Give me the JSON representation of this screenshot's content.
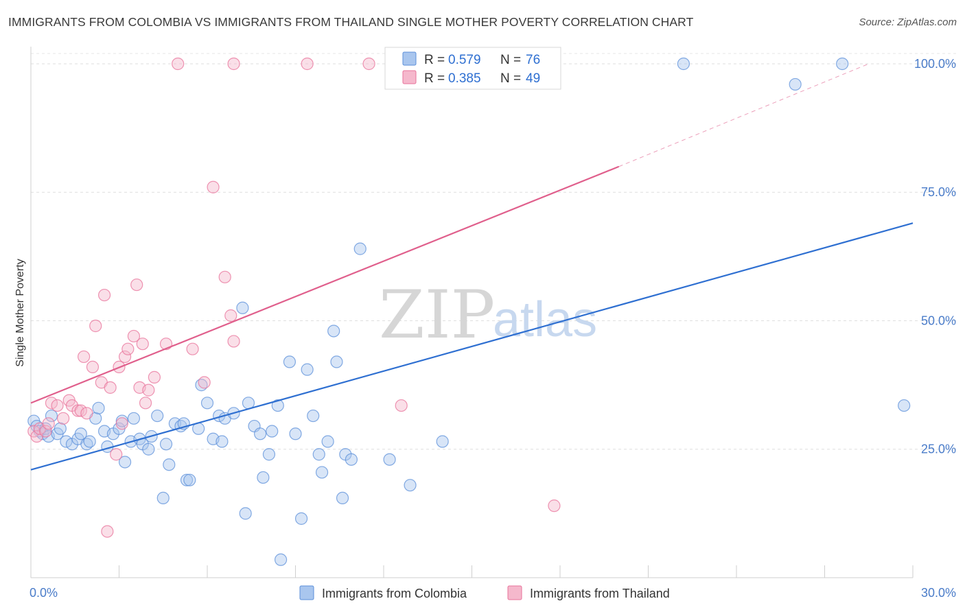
{
  "title": "IMMIGRANTS FROM COLOMBIA VS IMMIGRANTS FROM THAILAND SINGLE MOTHER POVERTY CORRELATION CHART",
  "source": "Source: ZipAtlas.com",
  "watermark": {
    "zip": "ZIP",
    "atlas": "atlas"
  },
  "colors": {
    "colombia": "#5b8fd9",
    "colombia_fill": "#a9c6ee",
    "thailand": "#e8729a",
    "thailand_fill": "#f5b8cc",
    "colombia_line": "#2e6fd1",
    "thailand_line": "#e05f8c"
  },
  "chart_data": {
    "type": "scatter",
    "title": "IMMIGRANTS FROM COLOMBIA VS IMMIGRANTS FROM THAILAND SINGLE MOTHER POVERTY CORRELATION CHART",
    "xlabel": "",
    "ylabel": "Single Mother Poverty",
    "xlim": [
      0,
      30
    ],
    "ylim": [
      0,
      102
    ],
    "x_tick_labels": [
      "0.0%",
      "30.0%"
    ],
    "y_ticks": [
      25,
      50,
      75,
      100
    ],
    "y_tick_labels": [
      "25.0%",
      "50.0%",
      "75.0%",
      "100.0%"
    ],
    "grid": true,
    "legend": [
      {
        "r_label": "R = ",
        "r": "0.579",
        "n_label": "N = ",
        "n": "76"
      },
      {
        "r_label": "R = ",
        "r": "0.385",
        "n_label": "N = ",
        "n": "49"
      }
    ],
    "series": [
      {
        "name": "Immigrants from Colombia",
        "trend": {
          "x": [
            0,
            30
          ],
          "y": [
            21.0,
            69.0
          ]
        },
        "points": [
          [
            0.1,
            30.5
          ],
          [
            0.2,
            29.5
          ],
          [
            0.3,
            28.5
          ],
          [
            0.4,
            28.0
          ],
          [
            0.5,
            29.0
          ],
          [
            0.6,
            27.5
          ],
          [
            0.7,
            31.5
          ],
          [
            0.9,
            28.0
          ],
          [
            1.0,
            29.0
          ],
          [
            1.2,
            26.5
          ],
          [
            1.4,
            26.0
          ],
          [
            1.6,
            27.0
          ],
          [
            1.7,
            28.0
          ],
          [
            1.9,
            26.0
          ],
          [
            2.0,
            26.5
          ],
          [
            2.2,
            31.0
          ],
          [
            2.3,
            33.0
          ],
          [
            2.5,
            28.5
          ],
          [
            2.6,
            25.5
          ],
          [
            2.8,
            28.0
          ],
          [
            3.0,
            29.0
          ],
          [
            3.1,
            30.5
          ],
          [
            3.2,
            22.5
          ],
          [
            3.4,
            26.5
          ],
          [
            3.5,
            31.0
          ],
          [
            3.7,
            27.0
          ],
          [
            3.8,
            26.0
          ],
          [
            4.0,
            25.0
          ],
          [
            4.1,
            27.5
          ],
          [
            4.3,
            31.5
          ],
          [
            4.5,
            15.5
          ],
          [
            4.6,
            26.0
          ],
          [
            4.7,
            22.0
          ],
          [
            4.9,
            30.0
          ],
          [
            5.1,
            29.5
          ],
          [
            5.2,
            30.0
          ],
          [
            5.3,
            19.0
          ],
          [
            5.4,
            19.0
          ],
          [
            5.7,
            29.0
          ],
          [
            5.8,
            37.5
          ],
          [
            6.0,
            34.0
          ],
          [
            6.2,
            27.0
          ],
          [
            6.4,
            31.5
          ],
          [
            6.5,
            26.5
          ],
          [
            6.6,
            31.0
          ],
          [
            6.9,
            32.0
          ],
          [
            7.2,
            52.5
          ],
          [
            7.3,
            12.5
          ],
          [
            7.4,
            34.0
          ],
          [
            7.6,
            29.5
          ],
          [
            7.8,
            28.0
          ],
          [
            7.9,
            19.5
          ],
          [
            8.1,
            24.0
          ],
          [
            8.2,
            28.5
          ],
          [
            8.4,
            33.5
          ],
          [
            8.5,
            3.5
          ],
          [
            8.8,
            42.0
          ],
          [
            9.0,
            28.0
          ],
          [
            9.2,
            11.5
          ],
          [
            9.4,
            40.5
          ],
          [
            9.6,
            31.5
          ],
          [
            9.8,
            24.0
          ],
          [
            9.9,
            20.5
          ],
          [
            10.1,
            26.5
          ],
          [
            10.3,
            48.0
          ],
          [
            10.4,
            42.0
          ],
          [
            10.6,
            15.5
          ],
          [
            10.7,
            24.0
          ],
          [
            10.9,
            23.0
          ],
          [
            11.2,
            64.0
          ],
          [
            12.2,
            23.0
          ],
          [
            12.9,
            18.0
          ],
          [
            14.0,
            26.5
          ],
          [
            22.2,
            100.0
          ],
          [
            26.0,
            96.0
          ],
          [
            27.6,
            100.0
          ],
          [
            29.7,
            33.5
          ]
        ]
      },
      {
        "name": "Immigrants from Thailand",
        "trend": {
          "x": [
            0,
            20
          ],
          "y": [
            34.0,
            80.0
          ]
        },
        "trend_extension": {
          "x": [
            20,
            28.5
          ],
          "y": [
            80.0,
            100.0
          ]
        },
        "points": [
          [
            0.1,
            28.5
          ],
          [
            0.2,
            27.5
          ],
          [
            0.3,
            29.0
          ],
          [
            0.5,
            28.5
          ],
          [
            0.6,
            30.0
          ],
          [
            0.7,
            34.0
          ],
          [
            0.9,
            33.5
          ],
          [
            1.1,
            31.0
          ],
          [
            1.3,
            34.5
          ],
          [
            1.4,
            33.5
          ],
          [
            1.6,
            32.5
          ],
          [
            1.7,
            32.5
          ],
          [
            1.8,
            43.0
          ],
          [
            1.9,
            32.0
          ],
          [
            2.1,
            41.0
          ],
          [
            2.2,
            49.0
          ],
          [
            2.4,
            38.0
          ],
          [
            2.5,
            55.0
          ],
          [
            2.6,
            9.0
          ],
          [
            2.7,
            37.0
          ],
          [
            2.9,
            24.0
          ],
          [
            3.0,
            41.0
          ],
          [
            3.1,
            30.0
          ],
          [
            3.2,
            43.0
          ],
          [
            3.3,
            44.5
          ],
          [
            3.5,
            47.0
          ],
          [
            3.6,
            57.0
          ],
          [
            3.7,
            37.0
          ],
          [
            3.8,
            45.5
          ],
          [
            3.9,
            34.0
          ],
          [
            4.0,
            36.5
          ],
          [
            4.2,
            39.0
          ],
          [
            4.6,
            45.5
          ],
          [
            5.0,
            100.0
          ],
          [
            5.5,
            44.5
          ],
          [
            5.9,
            38.0
          ],
          [
            6.2,
            76.0
          ],
          [
            6.6,
            58.5
          ],
          [
            6.8,
            51.0
          ],
          [
            6.9,
            46.0
          ],
          [
            6.9,
            100.0
          ],
          [
            9.4,
            100.0
          ],
          [
            11.5,
            100.0
          ],
          [
            12.6,
            33.5
          ],
          [
            17.8,
            14.0
          ]
        ]
      }
    ]
  }
}
